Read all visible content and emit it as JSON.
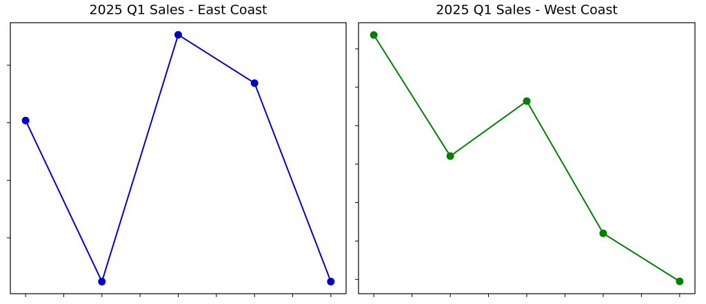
{
  "chart_data": [
    {
      "type": "line",
      "title": "2025 Q1 Sales - East Coast",
      "x": [
        0,
        1,
        2,
        3,
        4
      ],
      "xlim": [
        -0.2,
        4.2
      ],
      "xticks": [
        0,
        0.5,
        1,
        1.5,
        2,
        2.5,
        3,
        3.5,
        4
      ],
      "ylim": [
        0.03,
        4.74
      ],
      "yticks": [
        1,
        2,
        3,
        4
      ],
      "series": [
        {
          "color": "#0000cd",
          "values": [
            3.04,
            0.24,
            4.53,
            3.69,
            0.24
          ]
        }
      ]
    },
    {
      "type": "line",
      "title": "2025 Q1 Sales - West Coast",
      "x": [
        0,
        1,
        2,
        3,
        4
      ],
      "xlim": [
        -0.2,
        4.2
      ],
      "xticks": [
        0,
        0.5,
        1,
        1.5,
        2,
        2.5,
        3,
        3.5,
        4
      ],
      "ylim": [
        0.63,
        7.68
      ],
      "yticks": [
        1,
        2,
        3,
        4,
        5,
        6,
        7
      ],
      "series": [
        {
          "color": "#008000",
          "values": [
            7.36,
            4.21,
            5.64,
            2.2,
            0.95
          ]
        }
      ]
    }
  ]
}
